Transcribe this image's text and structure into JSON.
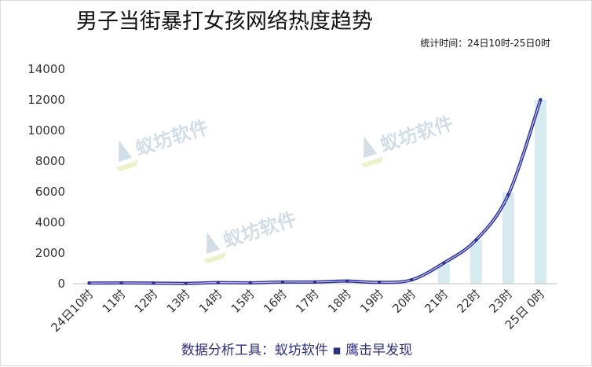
{
  "chart_data": {
    "type": "line",
    "title": "男子当街暴打女孩网络热度趋势",
    "subtitle": "统计时间：24日10时-25日0时",
    "categories": [
      "24日10时",
      "11时",
      "12时",
      "13时",
      "14时",
      "15时",
      "16时",
      "17时",
      "18时",
      "19时",
      "20时",
      "21时",
      "22时",
      "23时",
      "25日 0时"
    ],
    "series": [
      {
        "type": "line",
        "values": [
          40,
          50,
          40,
          20,
          70,
          60,
          110,
          110,
          170,
          90,
          250,
          1350,
          2850,
          5800,
          12000
        ]
      },
      {
        "type": "bar",
        "values": [
          0,
          0,
          0,
          0,
          0,
          0,
          0,
          0,
          0,
          0,
          0,
          1300,
          2850,
          5950,
          12000
        ]
      }
    ],
    "ylim": [
      0,
      14000
    ],
    "yticks": [
      0,
      2000,
      4000,
      6000,
      8000,
      10000,
      12000,
      14000
    ],
    "grid": false,
    "colors": {
      "line": "#2e3192",
      "line_inner": "#c5c8f0",
      "bar": "#d6eaf0",
      "axis": "#bfbfbf",
      "watermark": "#7f9fb8"
    }
  },
  "watermark": "蚁坊软件",
  "footer": "数据分析工具：蚁坊软件 ▪ 鹰击早发现"
}
